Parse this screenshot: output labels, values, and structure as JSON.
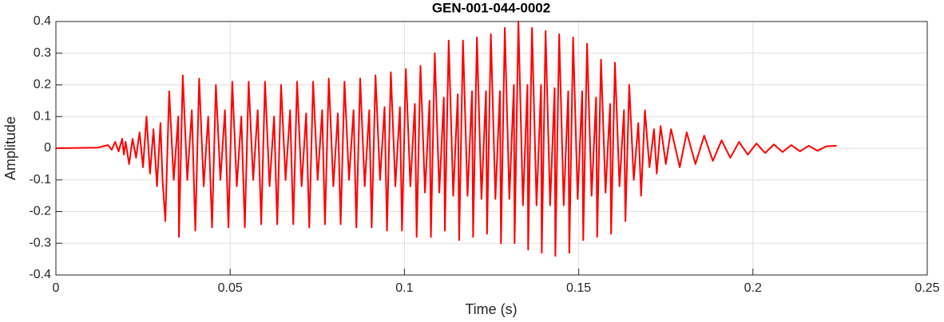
{
  "chart_data": {
    "type": "line",
    "title": "GEN-001-044-0002",
    "x_label": "Time (s)",
    "y_label": "Amplitude",
    "xlim": [
      0,
      0.25
    ],
    "xticks": [
      0,
      0.05,
      0.1,
      0.15,
      0.2,
      0.25
    ],
    "ylim": [
      -0.4,
      0.4
    ],
    "yticks": [
      -0.4,
      -0.3,
      -0.2,
      -0.1,
      0,
      0.1,
      0.2,
      0.3,
      0.4
    ],
    "grid": true,
    "series": [
      {
        "color": "#ff0000",
        "x": [
          0,
          0.012,
          0.015,
          0.016,
          0.017,
          0.018,
          0.019,
          0.0195,
          0.02,
          0.021,
          0.022,
          0.023,
          0.024,
          0.025,
          0.026,
          0.027,
          0.028,
          0.029,
          0.03,
          0.0306,
          0.0314,
          0.0325,
          0.0338,
          0.0351,
          0.0353,
          0.0364,
          0.0377,
          0.039,
          0.04,
          0.0411,
          0.0424,
          0.0437,
          0.0448,
          0.0459,
          0.0472,
          0.0485,
          0.0495,
          0.0506,
          0.0519,
          0.0532,
          0.0542,
          0.0553,
          0.0566,
          0.0579,
          0.0589,
          0.06,
          0.0613,
          0.0626,
          0.0635,
          0.0646,
          0.0659,
          0.0672,
          0.0681,
          0.0692,
          0.0705,
          0.0718,
          0.0727,
          0.0738,
          0.0751,
          0.0764,
          0.0772,
          0.0783,
          0.0796,
          0.0809,
          0.0817,
          0.0828,
          0.0841,
          0.0854,
          0.0862,
          0.0873,
          0.0886,
          0.0899,
          0.0906,
          0.0917,
          0.093,
          0.0943,
          0.095,
          0.0961,
          0.0974,
          0.0987,
          0.0993,
          0.1004,
          0.1017,
          0.103,
          0.1035,
          0.1046,
          0.1059,
          0.1072,
          0.1076,
          0.1087,
          0.11,
          0.1113,
          0.1116,
          0.1127,
          0.114,
          0.1153,
          0.1157,
          0.1168,
          0.1181,
          0.1194,
          0.1197,
          0.1208,
          0.1221,
          0.1234,
          0.1237,
          0.1248,
          0.1261,
          0.1274,
          0.1277,
          0.1288,
          0.1301,
          0.1314,
          0.1316,
          0.1327,
          0.134,
          0.1353,
          0.1355,
          0.1366,
          0.1379,
          0.1392,
          0.1394,
          0.1405,
          0.1418,
          0.1431,
          0.1433,
          0.1444,
          0.1457,
          0.147,
          0.1473,
          0.1484,
          0.1497,
          0.151,
          0.1513,
          0.1524,
          0.1537,
          0.155,
          0.1553,
          0.1564,
          0.1577,
          0.159,
          0.1593,
          0.1604,
          0.1617,
          0.163,
          0.1634,
          0.1645,
          0.1658,
          0.1671,
          0.1679,
          0.169,
          0.1703,
          0.1716,
          0.1724,
          0.1735,
          0.175,
          0.1765,
          0.179,
          0.181,
          0.1835,
          0.186,
          0.1885,
          0.191,
          0.1935,
          0.196,
          0.1985,
          0.201,
          0.2035,
          0.206,
          0.2085,
          0.211,
          0.2135,
          0.216,
          0.2185,
          0.221,
          0.224
        ],
        "values": [
          0,
          0.002,
          0.01,
          -0.005,
          0.02,
          -0.01,
          0.03,
          -0.02,
          0.02,
          -0.05,
          0.03,
          -0.03,
          0.05,
          -0.06,
          0.1,
          -0.08,
          0.06,
          -0.12,
          0.08,
          -0.1,
          -0.23,
          0.18,
          -0.1,
          0.1,
          -0.28,
          0.23,
          -0.1,
          0.12,
          -0.26,
          0.22,
          -0.12,
          0.1,
          -0.25,
          0.2,
          -0.1,
          0.12,
          -0.25,
          0.21,
          -0.12,
          0.1,
          -0.25,
          0.21,
          -0.1,
          0.12,
          -0.24,
          0.21,
          -0.12,
          0.1,
          -0.24,
          0.2,
          -0.1,
          0.12,
          -0.24,
          0.21,
          -0.12,
          0.11,
          -0.25,
          0.21,
          -0.1,
          0.12,
          -0.24,
          0.22,
          -0.12,
          0.11,
          -0.24,
          0.21,
          -0.1,
          0.12,
          -0.25,
          0.22,
          -0.12,
          0.12,
          -0.25,
          0.23,
          -0.1,
          0.13,
          -0.26,
          0.24,
          -0.12,
          0.13,
          -0.26,
          0.25,
          -0.12,
          0.14,
          -0.28,
          0.26,
          -0.14,
          0.15,
          -0.28,
          0.3,
          -0.14,
          0.16,
          -0.26,
          0.34,
          -0.15,
          0.17,
          -0.29,
          0.34,
          -0.15,
          0.18,
          -0.28,
          0.35,
          -0.16,
          0.18,
          -0.27,
          0.36,
          -0.16,
          0.18,
          -0.3,
          0.38,
          -0.16,
          0.2,
          -0.3,
          0.4,
          -0.18,
          0.2,
          -0.32,
          0.38,
          -0.18,
          0.2,
          -0.33,
          0.37,
          -0.18,
          0.19,
          -0.34,
          0.36,
          -0.18,
          0.18,
          -0.33,
          0.35,
          -0.16,
          0.18,
          -0.29,
          0.33,
          -0.15,
          0.16,
          -0.28,
          0.28,
          -0.14,
          0.14,
          -0.27,
          0.27,
          -0.12,
          0.12,
          -0.23,
          0.2,
          -0.1,
          0.08,
          -0.15,
          0.12,
          -0.06,
          0.06,
          -0.08,
          0.07,
          -0.05,
          0.06,
          -0.06,
          0.05,
          -0.05,
          0.04,
          -0.04,
          0.025,
          -0.03,
          0.02,
          -0.02,
          0.015,
          -0.015,
          0.012,
          -0.012,
          0.01,
          -0.01,
          0.008,
          -0.008,
          0.006,
          0.008
        ]
      }
    ]
  }
}
